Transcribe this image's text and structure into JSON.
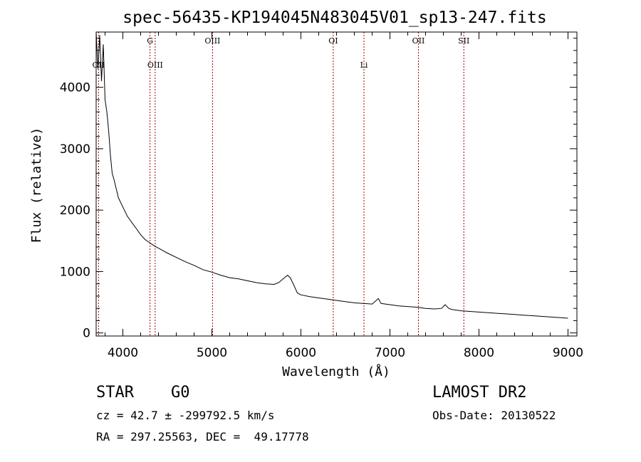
{
  "chart_data": {
    "type": "line",
    "title": "spec-56435-KP194045N483045V01_sp13-247.fits",
    "xlabel": "Wavelength (Å)",
    "ylabel": "Flux (relative)",
    "xlim": [
      3700,
      9100
    ],
    "ylim": [
      -50,
      4900
    ],
    "x_ticks": [
      4000,
      5000,
      6000,
      7000,
      8000,
      9000
    ],
    "y_ticks": [
      0,
      1000,
      2000,
      3000,
      4000
    ],
    "grid": false,
    "series": [
      {
        "x": [
          3700,
          3720,
          3740,
          3760,
          3780,
          3800,
          3820,
          3840,
          3860,
          3880,
          3900,
          3950,
          4000,
          4050,
          4100,
          4150,
          4200,
          4250,
          4300,
          4350,
          4400,
          4450,
          4500,
          4600,
          4700,
          4800,
          4900,
          5000,
          5100,
          5200,
          5300,
          5400,
          5500,
          5600,
          5700,
          5750,
          5800,
          5850,
          5880,
          5920,
          5960,
          6000,
          6100,
          6200,
          6300,
          6400,
          6500,
          6600,
          6700,
          6800,
          6870,
          6900,
          7000,
          7100,
          7200,
          7300,
          7400,
          7500,
          7580,
          7620,
          7660,
          7700,
          7800,
          7900,
          8000,
          8100,
          8200,
          8300,
          8400,
          8500,
          8600,
          8700,
          8800,
          8900,
          9000
        ],
        "y": [
          4900,
          4300,
          4850,
          4100,
          4700,
          3800,
          3600,
          3300,
          2900,
          2600,
          2500,
          2200,
          2050,
          1900,
          1800,
          1700,
          1600,
          1520,
          1470,
          1420,
          1380,
          1340,
          1300,
          1230,
          1160,
          1100,
          1030,
          990,
          940,
          900,
          880,
          850,
          820,
          800,
          790,
          820,
          880,
          940,
          900,
          780,
          650,
          620,
          590,
          570,
          550,
          530,
          510,
          490,
          480,
          470,
          560,
          480,
          460,
          440,
          430,
          420,
          400,
          390,
          400,
          460,
          400,
          380,
          360,
          350,
          340,
          330,
          320,
          310,
          300,
          290,
          280,
          270,
          260,
          250,
          240
        ]
      }
    ],
    "lines": [
      {
        "label": "OII",
        "x": 3727,
        "row": 1
      },
      {
        "label": "G",
        "x": 4305,
        "row": 0
      },
      {
        "label": "OIII",
        "x": 4363,
        "row": 1
      },
      {
        "label": "OIII",
        "x": 5007,
        "row": 0
      },
      {
        "label": "OI",
        "x": 6363,
        "row": 0
      },
      {
        "label": "Li",
        "x": 6708,
        "row": 1
      },
      {
        "label": "OII",
        "x": 7320,
        "row": 0
      },
      {
        "label": "SII",
        "x": 7830,
        "row": 0
      }
    ],
    "line_color": "#a00000"
  },
  "info": {
    "class": "STAR",
    "subclass": "G0",
    "survey": "LAMOST DR2",
    "cz": "cz = 42.7 ± -299792.5 km/s",
    "obs_date": "Obs-Date: 20130522",
    "coords": "RA = 297.25563, DEC =  49.17778"
  }
}
